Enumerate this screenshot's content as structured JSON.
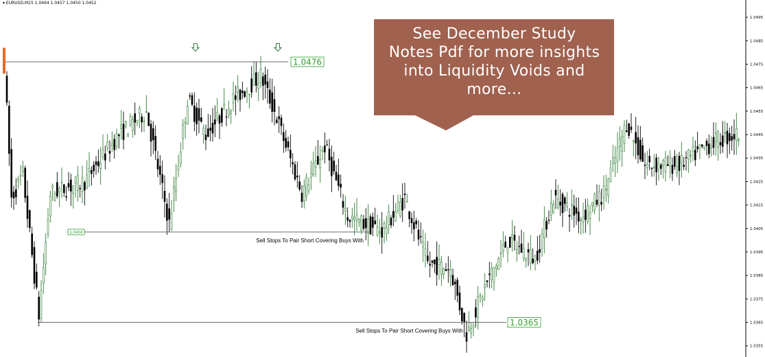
{
  "header": {
    "symbol_text": "▾ EURUSD,M15  1.0464 1.0457 1.0450 1.0452"
  },
  "callout": {
    "lines": [
      "See December Study",
      "Notes Pdf for more insights",
      "into Liquidity Voids and",
      "more…"
    ],
    "fill": "#a0614f"
  },
  "colors": {
    "bull": "#2e7d32",
    "bear": "#000000",
    "label_border": "#2e9e2e",
    "label_text": "#2e9e2e",
    "level_line": "#555555"
  },
  "chart_data": {
    "type": "candlestick",
    "title": "",
    "symbol": "EURUSD",
    "timeframe": "M15",
    "ylim": [
      1.0352,
      1.05
    ],
    "y_ticks": [
      "1.0495",
      "1.0485",
      "1.0475",
      "1.0465",
      "1.0455",
      "1.0445",
      "1.0435",
      "1.0425",
      "1.0415",
      "1.0405",
      "1.0395",
      "1.0385",
      "1.0375",
      "1.0365",
      "1.0355"
    ],
    "y_tick_values": [
      1.0495,
      1.0485,
      1.0475,
      1.0465,
      1.0455,
      1.0445,
      1.0435,
      1.0425,
      1.0415,
      1.0405,
      1.0395,
      1.0385,
      1.0375,
      1.0365,
      1.0355
    ],
    "price_path_anchors": [
      {
        "bar": 0,
        "price": 1.0474
      },
      {
        "bar": 3,
        "price": 1.0418
      },
      {
        "bar": 8,
        "price": 1.0428
      },
      {
        "bar": 15,
        "price": 1.0368
      },
      {
        "bar": 20,
        "price": 1.042
      },
      {
        "bar": 35,
        "price": 1.0425
      },
      {
        "bar": 50,
        "price": 1.0445
      },
      {
        "bar": 62,
        "price": 1.0455
      },
      {
        "bar": 72,
        "price": 1.0407
      },
      {
        "bar": 80,
        "price": 1.046
      },
      {
        "bar": 88,
        "price": 1.0445
      },
      {
        "bar": 100,
        "price": 1.046
      },
      {
        "bar": 112,
        "price": 1.047
      },
      {
        "bar": 118,
        "price": 1.0455
      },
      {
        "bar": 130,
        "price": 1.042
      },
      {
        "bar": 140,
        "price": 1.044
      },
      {
        "bar": 150,
        "price": 1.041
      },
      {
        "bar": 165,
        "price": 1.0404
      },
      {
        "bar": 175,
        "price": 1.0418
      },
      {
        "bar": 185,
        "price": 1.039
      },
      {
        "bar": 195,
        "price": 1.0388
      },
      {
        "bar": 202,
        "price": 1.036
      },
      {
        "bar": 210,
        "price": 1.038
      },
      {
        "bar": 220,
        "price": 1.04
      },
      {
        "bar": 232,
        "price": 1.0392
      },
      {
        "bar": 240,
        "price": 1.0418
      },
      {
        "bar": 252,
        "price": 1.041
      },
      {
        "bar": 262,
        "price": 1.042
      },
      {
        "bar": 272,
        "price": 1.045
      },
      {
        "bar": 280,
        "price": 1.0432
      },
      {
        "bar": 295,
        "price": 1.0432
      },
      {
        "bar": 310,
        "price": 1.0442
      },
      {
        "bar": 320,
        "price": 1.0445
      }
    ],
    "levels": [
      {
        "price": 1.0476,
        "label": "1.0476",
        "kind": "high"
      },
      {
        "price": 1.04035,
        "label": "1.0404",
        "kind": "low"
      },
      {
        "price": 1.0365,
        "label": "1.0365",
        "kind": "low"
      }
    ],
    "annotations": [
      "Sell Stops To Pair Short Covering Buys With",
      "Sell Stops To Pair Short Covering Buys With"
    ],
    "arrow_markers": 2
  }
}
